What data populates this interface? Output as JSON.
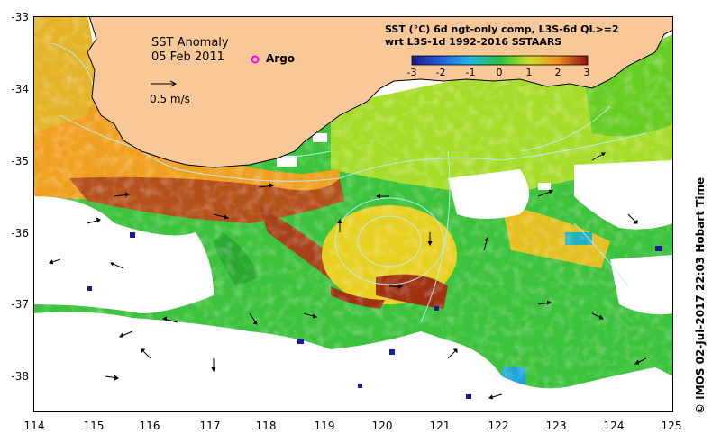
{
  "map": {
    "title": "SST Anomaly",
    "date": "05 Feb 2011",
    "argo_label": "Argo",
    "scale_label": "0.5 m/s",
    "header_line1": "SST (°C) 6d ngt-only comp, L3S-6d QL>=2",
    "header_line2": "wrt L3S-1d 1992-2016 SSTAARS",
    "credit": "© IMOS 02-Jul-2017 22:03 Hobart Time",
    "x_ticks": [
      "114",
      "115",
      "116",
      "117",
      "118",
      "119",
      "120",
      "121",
      "122",
      "123",
      "124",
      "125"
    ],
    "y_ticks": [
      "-33",
      "-34",
      "-35",
      "-36",
      "-37",
      "-38"
    ],
    "colorbar_ticks": [
      "-3",
      "-2",
      "-1",
      "0",
      "1",
      "2",
      "3"
    ],
    "colors": {
      "land": "#f9c898",
      "no_data": "#ffffff",
      "coast": "#000000",
      "argo": "#ff00ff"
    }
  }
}
